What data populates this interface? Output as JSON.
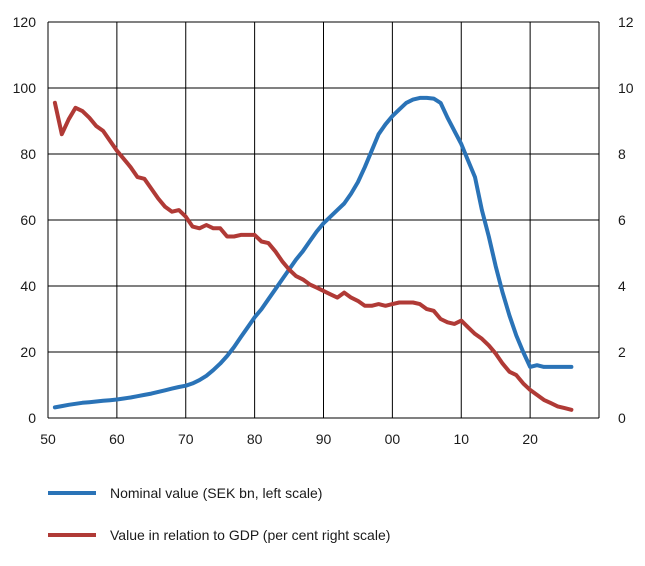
{
  "chart_data": {
    "type": "line",
    "title": "",
    "xlabel": "",
    "ylabel_left": "",
    "ylabel_right": "",
    "x_ticks": [
      {
        "year": 1950,
        "label": "50"
      },
      {
        "year": 1960,
        "label": "60"
      },
      {
        "year": 1970,
        "label": "70"
      },
      {
        "year": 1980,
        "label": "80"
      },
      {
        "year": 1990,
        "label": "90"
      },
      {
        "year": 2000,
        "label": "00"
      },
      {
        "year": 2010,
        "label": "10"
      },
      {
        "year": 2020,
        "label": "20"
      }
    ],
    "xlim": [
      1950,
      2030
    ],
    "ylim_left": [
      0,
      120
    ],
    "ylim_right": [
      0,
      12
    ],
    "y_ticks_left": [
      "0",
      "20",
      "40",
      "60",
      "80",
      "100",
      "120"
    ],
    "y_ticks_right": [
      "0",
      "2",
      "4",
      "6",
      "8",
      "10",
      "12"
    ],
    "grid": true,
    "legend_position": "bottom",
    "series": [
      {
        "name": "Nominal value (SEK bn, left scale)",
        "axis": "left",
        "color": "#2a73b7",
        "x": [
          1951,
          1952,
          1953,
          1954,
          1955,
          1956,
          1957,
          1958,
          1959,
          1960,
          1961,
          1962,
          1963,
          1964,
          1965,
          1966,
          1967,
          1968,
          1969,
          1970,
          1971,
          1972,
          1973,
          1974,
          1975,
          1976,
          1977,
          1978,
          1979,
          1980,
          1981,
          1982,
          1983,
          1984,
          1985,
          1986,
          1987,
          1988,
          1989,
          1990,
          1991,
          1992,
          1993,
          1994,
          1995,
          1996,
          1997,
          1998,
          1999,
          2000,
          2001,
          2002,
          2003,
          2004,
          2005,
          2006,
          2007,
          2008,
          2009,
          2010,
          2011,
          2012,
          2013,
          2014,
          2015,
          2016,
          2017,
          2018,
          2019,
          2020,
          2021,
          2022,
          2023,
          2024,
          2025,
          2026
        ],
        "y": [
          3.2,
          3.6,
          4.0,
          4.3,
          4.6,
          4.8,
          5.0,
          5.2,
          5.4,
          5.6,
          5.9,
          6.2,
          6.6,
          7.0,
          7.4,
          7.9,
          8.4,
          8.9,
          9.4,
          9.8,
          10.5,
          11.5,
          12.8,
          14.5,
          16.5,
          18.8,
          21.5,
          24.5,
          27.5,
          30.5,
          33.0,
          36.0,
          39.0,
          42.0,
          45.0,
          48.0,
          50.5,
          53.5,
          56.5,
          59.0,
          61.0,
          63.0,
          65.0,
          68.0,
          71.5,
          76.0,
          81.0,
          86.0,
          89.0,
          91.5,
          93.5,
          95.5,
          96.5,
          97.0,
          97.0,
          96.8,
          95.5,
          91.0,
          87.0,
          83.0,
          78.0,
          73.0,
          63.0,
          55.0,
          46.0,
          38.0,
          31.0,
          25.0,
          20.0,
          15.5,
          16.0,
          15.5,
          15.5,
          15.5,
          15.5,
          15.5
        ]
      },
      {
        "name": "Value in relation to GDP (per cent right scale)",
        "axis": "right",
        "color": "#b03a36",
        "x": [
          1951,
          1952,
          1953,
          1954,
          1955,
          1956,
          1957,
          1958,
          1959,
          1960,
          1961,
          1962,
          1963,
          1964,
          1965,
          1966,
          1967,
          1968,
          1969,
          1970,
          1971,
          1972,
          1973,
          1974,
          1975,
          1976,
          1977,
          1978,
          1979,
          1980,
          1981,
          1982,
          1983,
          1984,
          1985,
          1986,
          1987,
          1988,
          1989,
          1990,
          1991,
          1992,
          1993,
          1994,
          1995,
          1996,
          1997,
          1998,
          1999,
          2000,
          2001,
          2002,
          2003,
          2004,
          2005,
          2006,
          2007,
          2008,
          2009,
          2010,
          2011,
          2012,
          2013,
          2014,
          2015,
          2016,
          2017,
          2018,
          2019,
          2020,
          2021,
          2022,
          2023,
          2024,
          2025,
          2026
        ],
        "y": [
          9.55,
          8.6,
          9.05,
          9.4,
          9.3,
          9.1,
          8.85,
          8.7,
          8.4,
          8.1,
          7.85,
          7.6,
          7.3,
          7.25,
          6.95,
          6.65,
          6.4,
          6.25,
          6.3,
          6.1,
          5.8,
          5.75,
          5.85,
          5.75,
          5.75,
          5.5,
          5.5,
          5.55,
          5.55,
          5.55,
          5.35,
          5.3,
          5.05,
          4.75,
          4.5,
          4.3,
          4.2,
          4.05,
          3.95,
          3.85,
          3.75,
          3.65,
          3.8,
          3.65,
          3.55,
          3.4,
          3.4,
          3.45,
          3.4,
          3.45,
          3.5,
          3.5,
          3.5,
          3.45,
          3.3,
          3.25,
          3.0,
          2.9,
          2.85,
          2.95,
          2.75,
          2.55,
          2.4,
          2.2,
          1.95,
          1.65,
          1.4,
          1.3,
          1.05,
          0.85,
          0.7,
          0.55,
          0.45,
          0.35,
          0.3,
          0.25
        ]
      }
    ]
  }
}
